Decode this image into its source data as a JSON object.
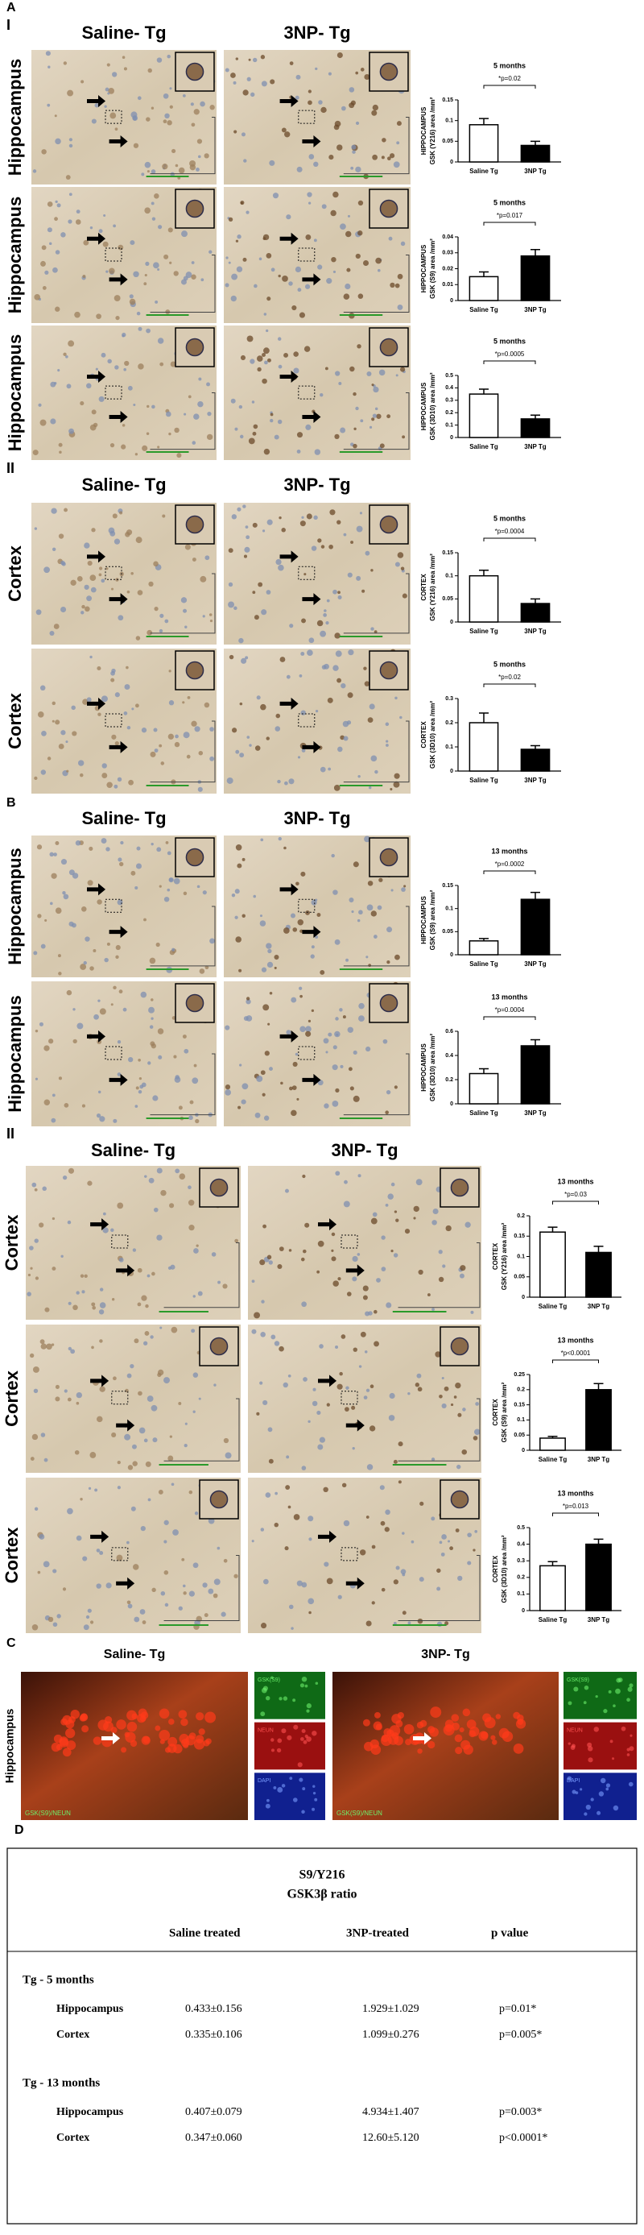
{
  "sections": [
    {
      "letter": "A",
      "label": "I",
      "columns": [
        "Saline- Tg",
        "3NP- Tg"
      ],
      "rows": [
        "Hippocampus",
        "Hippocampus",
        "Hippocampus"
      ]
    },
    {
      "label": "II",
      "columns": [
        "Saline- Tg",
        "3NP- Tg"
      ],
      "rows": [
        "Cortex",
        "Cortex"
      ]
    },
    {
      "letter": "B",
      "columns": [
        "Saline- Tg",
        "3NP- Tg"
      ],
      "rows": [
        "Hippocampus",
        "Hippocampus"
      ]
    },
    {
      "label": "II",
      "columns": [
        "Saline- Tg",
        "3NP- Tg"
      ],
      "rows": [
        "Cortex",
        "Cortex",
        "Cortex"
      ]
    },
    {
      "letter": "C",
      "columns": [
        "Saline- Tg",
        "3NP- Tg"
      ],
      "row_label": "Hippocampus",
      "channels": [
        "GSK(S9)",
        "NEUN",
        "DAPI"
      ],
      "merge": "GSK(S9)/NEUN"
    }
  ],
  "table": {
    "letter": "D",
    "title": "S9/Y216",
    "subtitle": "GSK3β ratio",
    "header": [
      "Saline treated",
      "3NP-treated",
      "p value"
    ],
    "groups": [
      {
        "name": "Tg - 5 months",
        "rows": [
          [
            "Hippocampus",
            "0.433±0.156",
            "1.929±1.029",
            "p=0.01*"
          ],
          [
            "Cortex",
            "0.335±0.106",
            "1.099±0.276",
            "p=0.005*"
          ]
        ]
      },
      {
        "name": "Tg - 13 months",
        "rows": [
          [
            "Hippocampus",
            "0.407±0.079",
            "4.934±1.407",
            "p=0.003*"
          ],
          [
            "Cortex",
            "0.347±0.060",
            "12.60±5.120",
            "p<0.0001*"
          ]
        ]
      }
    ]
  },
  "chart_data": [
    {
      "type": "bar",
      "title": "5 months",
      "annotation": "*p=0.02",
      "ylabel": [
        "HIPPOCAMPUS",
        "GSK (Y216) area /mm²"
      ],
      "categories": [
        "Saline Tg",
        "3NP Tg"
      ],
      "values": [
        0.09,
        0.04
      ],
      "errors": [
        0.015,
        0.01
      ],
      "colors": [
        "#ffffff",
        "#000000"
      ],
      "ylim": [
        0,
        0.15
      ],
      "yticks": [
        0,
        0.05,
        0.1,
        0.15
      ]
    },
    {
      "type": "bar",
      "title": "5 months",
      "annotation": "*p=0.017",
      "ylabel": [
        "HIPPOCAMPUS",
        "GSK (S9) area /mm²"
      ],
      "categories": [
        "Saline Tg",
        "3NP Tg"
      ],
      "values": [
        0.015,
        0.028
      ],
      "errors": [
        0.003,
        0.004
      ],
      "colors": [
        "#ffffff",
        "#000000"
      ],
      "ylim": [
        0,
        0.04
      ],
      "yticks": [
        0,
        0.01,
        0.02,
        0.03,
        0.04
      ]
    },
    {
      "type": "bar",
      "title": "5 months",
      "annotation": "*p=0.0005",
      "ylabel": [
        "HIPPOCAMPUS",
        "GSK (3D10) area /mm²"
      ],
      "categories": [
        "Saline Tg",
        "3NP Tg"
      ],
      "values": [
        0.35,
        0.15
      ],
      "errors": [
        0.04,
        0.03
      ],
      "colors": [
        "#ffffff",
        "#000000"
      ],
      "ylim": [
        0,
        0.5
      ],
      "yticks": [
        0,
        0.1,
        0.2,
        0.3,
        0.4,
        0.5
      ]
    },
    {
      "type": "bar",
      "title": "5 months",
      "annotation": "*p=0.0004",
      "ylabel": [
        "CORTEX",
        "GSK (Y216) area /mm²"
      ],
      "categories": [
        "Saline Tg",
        "3NP Tg"
      ],
      "values": [
        0.1,
        0.04
      ],
      "errors": [
        0.012,
        0.01
      ],
      "colors": [
        "#ffffff",
        "#000000"
      ],
      "ylim": [
        0,
        0.15
      ],
      "yticks": [
        0,
        0.05,
        0.1,
        0.15
      ]
    },
    {
      "type": "bar",
      "title": "5 months",
      "annotation": "*p=0.02",
      "ylabel": [
        "CORTEX",
        "GSK (3D10) area /mm²"
      ],
      "categories": [
        "Saline Tg",
        "3NP Tg"
      ],
      "values": [
        0.2,
        0.09
      ],
      "errors": [
        0.04,
        0.015
      ],
      "colors": [
        "#ffffff",
        "#000000"
      ],
      "ylim": [
        0,
        0.3
      ],
      "yticks": [
        0,
        0.1,
        0.2,
        0.3
      ]
    },
    {
      "type": "bar",
      "title": "13 months",
      "annotation": "*p=0.0002",
      "ylabel": [
        "HIPPOCAMPUS",
        "GSK (S9) area /mm²"
      ],
      "categories": [
        "Saline Tg",
        "3NP Tg"
      ],
      "values": [
        0.03,
        0.12
      ],
      "errors": [
        0.005,
        0.015
      ],
      "colors": [
        "#ffffff",
        "#000000"
      ],
      "ylim": [
        0,
        0.15
      ],
      "yticks": [
        0,
        0.05,
        0.1,
        0.15
      ]
    },
    {
      "type": "bar",
      "title": "13 months",
      "annotation": "*p=0.0004",
      "ylabel": [
        "HIPPOCAMPUS",
        "GSK (3D10) area /mm²"
      ],
      "categories": [
        "Saline Tg",
        "3NP Tg"
      ],
      "values": [
        0.25,
        0.48
      ],
      "errors": [
        0.04,
        0.05
      ],
      "colors": [
        "#ffffff",
        "#000000"
      ],
      "ylim": [
        0,
        0.6
      ],
      "yticks": [
        0,
        0.2,
        0.4,
        0.6
      ]
    },
    {
      "type": "bar",
      "title": "13 months",
      "annotation": "*p=0.03",
      "ylabel": [
        "CORTEX",
        "GSK (Y216) area /mm²"
      ],
      "categories": [
        "Saline Tg",
        "3NP Tg"
      ],
      "values": [
        0.16,
        0.11
      ],
      "errors": [
        0.012,
        0.015
      ],
      "colors": [
        "#ffffff",
        "#000000"
      ],
      "ylim": [
        0,
        0.2
      ],
      "yticks": [
        0,
        0.05,
        0.1,
        0.15,
        0.2
      ]
    },
    {
      "type": "bar",
      "title": "13 months",
      "annotation": "*p<0.0001",
      "ylabel": [
        "CORTEX",
        "GSK (S9) area /mm²"
      ],
      "categories": [
        "Saline Tg",
        "3NP Tg"
      ],
      "values": [
        0.04,
        0.2
      ],
      "errors": [
        0.006,
        0.02
      ],
      "colors": [
        "#ffffff",
        "#000000"
      ],
      "ylim": [
        0,
        0.25
      ],
      "yticks": [
        0,
        0.05,
        0.1,
        0.15,
        0.2,
        0.25
      ]
    },
    {
      "type": "bar",
      "title": "13 months",
      "annotation": "*p=0.013",
      "ylabel": [
        "CORTEX",
        "GSK (3D10) area /mm²"
      ],
      "categories": [
        "Saline Tg",
        "3NP Tg"
      ],
      "values": [
        0.27,
        0.4
      ],
      "errors": [
        0.025,
        0.03
      ],
      "colors": [
        "#ffffff",
        "#000000"
      ],
      "ylim": [
        0,
        0.5
      ],
      "yticks": [
        0,
        0.1,
        0.2,
        0.3,
        0.4,
        0.5
      ]
    }
  ]
}
